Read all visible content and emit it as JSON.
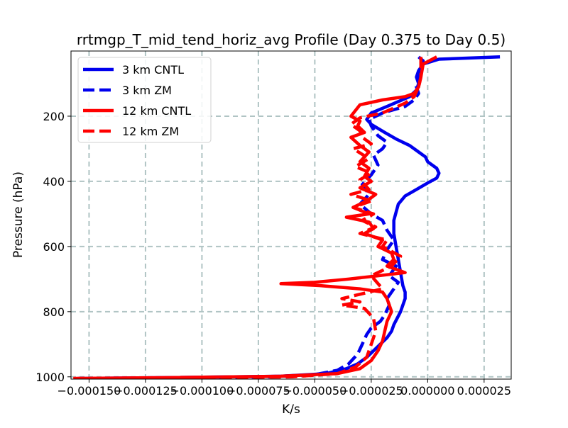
{
  "chart_data": {
    "type": "line",
    "title": "rrtmgp_T_mid_tend_horiz_avg Profile (Day 0.375 to Day 0.5)",
    "xlabel": "K/s",
    "ylabel": "Pressure (hPa)",
    "xlim": [
      -0.000158,
      3.7e-05
    ],
    "ylim": [
      1007,
      0
    ],
    "y_inverted": true,
    "grid": true,
    "legend_position": "upper-left",
    "x_ticks": [
      -0.00015,
      -0.000125,
      -0.0001,
      -7.5e-05,
      -5e-05,
      -2.5e-05,
      0.0,
      2.5e-05
    ],
    "x_tick_labels": [
      "−0.000150",
      "−0.000125",
      "−0.000100",
      "−0.000075",
      "−0.000050",
      "−0.000025",
      "0.000000",
      "0.000025"
    ],
    "y_ticks": [
      200,
      400,
      600,
      800,
      1000
    ],
    "y_tick_labels": [
      "200",
      "400",
      "600",
      "800",
      "1000"
    ],
    "series": [
      {
        "name": "3 km CNTL",
        "color": "#0000ee",
        "dash": "solid",
        "x": [
          3.2e-05,
          5e-06,
          -2e-06,
          -4e-06,
          -5e-06,
          -4e-06,
          -5e-06,
          -8e-06,
          -1.8e-05,
          -2.5e-05,
          -2.7e-05,
          -2.5e-05,
          -1.9e-05,
          -1.4e-05,
          -8e-06,
          -4e-06,
          -1e-06,
          0.0,
          4e-06,
          5e-06,
          4e-06,
          0.0,
          -5e-06,
          -1e-05,
          -1.3e-05,
          -1.4e-05,
          -1.5e-05,
          -1.5e-05,
          -1.4e-05,
          -1.3e-05,
          -1.2e-05,
          -1.1e-05,
          -1e-05,
          -1e-05,
          -1.2e-05,
          -1.5e-05,
          -1.6e-05,
          -1.8e-05,
          -2.1e-05,
          -2.4e-05,
          -2.7e-05,
          -3.1e-05,
          -3.6e-05,
          -4.5e-05,
          -6.5e-05,
          -0.00011,
          -0.000155
        ],
        "y": [
          18,
          25,
          40,
          60,
          80,
          100,
          120,
          140,
          170,
          190,
          210,
          225,
          250,
          270,
          290,
          310,
          325,
          340,
          360,
          375,
          390,
          405,
          425,
          445,
          470,
          495,
          520,
          560,
          600,
          640,
          680,
          720,
          740,
          760,
          800,
          840,
          860,
          880,
          900,
          920,
          940,
          960,
          975,
          990,
          998,
          1002,
          1005
        ]
      },
      {
        "name": "3 km ZM",
        "color": "#0000ee",
        "dash": "dashed",
        "x": [
          -4e-06,
          -2e-06,
          -3e-06,
          -4e-06,
          -5e-06,
          -4e-06,
          -6e-06,
          -1e-05,
          -2e-05,
          -2.6e-05,
          -2.5e-05,
          -2.2e-05,
          -1.8e-05,
          -2e-05,
          -2.4e-05,
          -2.2e-05,
          -2.5e-05,
          -2.9e-05,
          -2.6e-05,
          -3e-05,
          -2.5e-05,
          -2e-05,
          -1.8e-05,
          -1.5e-05,
          -1.8e-05,
          -2e-05,
          -1.4e-05,
          -1.7e-05,
          -1.3e-05,
          -1.5e-05,
          -1.8e-05,
          -1.7e-05,
          -1.9e-05,
          -2.1e-05,
          -2.5e-05,
          -2.7e-05,
          -2.9e-05,
          -3.1e-05,
          -3.5e-05,
          -4e-05,
          -5e-05,
          -7e-05,
          -0.00011,
          -0.000155
        ],
        "y": [
          18,
          30,
          60,
          90,
          110,
          130,
          150,
          170,
          190,
          210,
          230,
          260,
          280,
          300,
          320,
          350,
          380,
          410,
          440,
          470,
          500,
          520,
          550,
          580,
          610,
          640,
          660,
          690,
          710,
          730,
          760,
          780,
          810,
          830,
          850,
          870,
          900,
          930,
          960,
          980,
          993,
          1000,
          1003,
          1005
        ]
      },
      {
        "name": "12 km CNTL",
        "color": "#ff0000",
        "dash": "solid",
        "x": [
          4e-06,
          -2e-06,
          -3e-06,
          -4e-06,
          -6e-06,
          -1e-05,
          -2e-05,
          -3e-05,
          -3.4e-05,
          -3e-05,
          -3.1e-05,
          -2.8e-05,
          -3.4e-05,
          -3e-05,
          -2.6e-05,
          -3e-05,
          -2.6e-05,
          -2.8e-05,
          -2.5e-05,
          -3e-05,
          -2.3e-05,
          -2.7e-05,
          -3.3e-05,
          -2.6e-05,
          -3.6e-05,
          -2.6e-05,
          -2.4e-05,
          -2.8e-05,
          -2e-05,
          -2.2e-05,
          -1.6e-05,
          -1.5e-05,
          -1.8e-05,
          -1e-05,
          -2.2e-05,
          -3.5e-05,
          -5e-05,
          -6.5e-05,
          -4.8e-05,
          -3e-05,
          -2e-05,
          -1.8e-05,
          -1.6e-05,
          -1.8e-05,
          -1.9e-05,
          -2e-05,
          -2.2e-05,
          -2.5e-05,
          -3e-05,
          -4e-05,
          -6.5e-05,
          -0.00011,
          -0.000157
        ],
        "y": [
          18,
          40,
          80,
          110,
          130,
          140,
          150,
          165,
          200,
          215,
          230,
          250,
          265,
          290,
          310,
          340,
          360,
          385,
          400,
          420,
          440,
          460,
          480,
          500,
          510,
          525,
          545,
          560,
          580,
          600,
          620,
          640,
          660,
          680,
          690,
          700,
          710,
          714,
          720,
          730,
          740,
          760,
          800,
          830,
          860,
          890,
          920,
          950,
          975,
          990,
          998,
          1002,
          1005
        ]
      },
      {
        "name": "12 km ZM",
        "color": "#ff0000",
        "dash": "dashed",
        "x": [
          -3e-06,
          -3e-06,
          -4e-06,
          -6e-06,
          -1e-05,
          -2e-05,
          -3e-05,
          -3.4e-05,
          -3e-05,
          -2.9e-05,
          -2.5e-05,
          -3.3e-05,
          -2.6e-05,
          -3.2e-05,
          -2.5e-05,
          -3e-05,
          -2.6e-05,
          -3.4e-05,
          -2.5e-05,
          -3.3e-05,
          -2.4e-05,
          -2.9e-05,
          -2.3e-05,
          -3e-05,
          -1.8e-05,
          -2e-05,
          -1.2e-05,
          -1.6e-05,
          -2.5e-05,
          -2e-05,
          -3.8e-05,
          -3e-05,
          -3.8e-05,
          -2.8e-05,
          -2.4e-05,
          -2.3e-05,
          -2.5e-05,
          -2.7e-05,
          -3.2e-05,
          -4e-05,
          -6e-05,
          -0.00011,
          -0.000157
        ],
        "y": [
          18,
          80,
          110,
          140,
          160,
          190,
          205,
          225,
          245,
          265,
          285,
          300,
          330,
          355,
          375,
          395,
          425,
          440,
          460,
          480,
          500,
          520,
          540,
          560,
          580,
          600,
          630,
          660,
          690,
          730,
          760,
          770,
          780,
          790,
          820,
          860,
          900,
          940,
          970,
          990,
          1000,
          1003,
          1005
        ]
      }
    ]
  }
}
